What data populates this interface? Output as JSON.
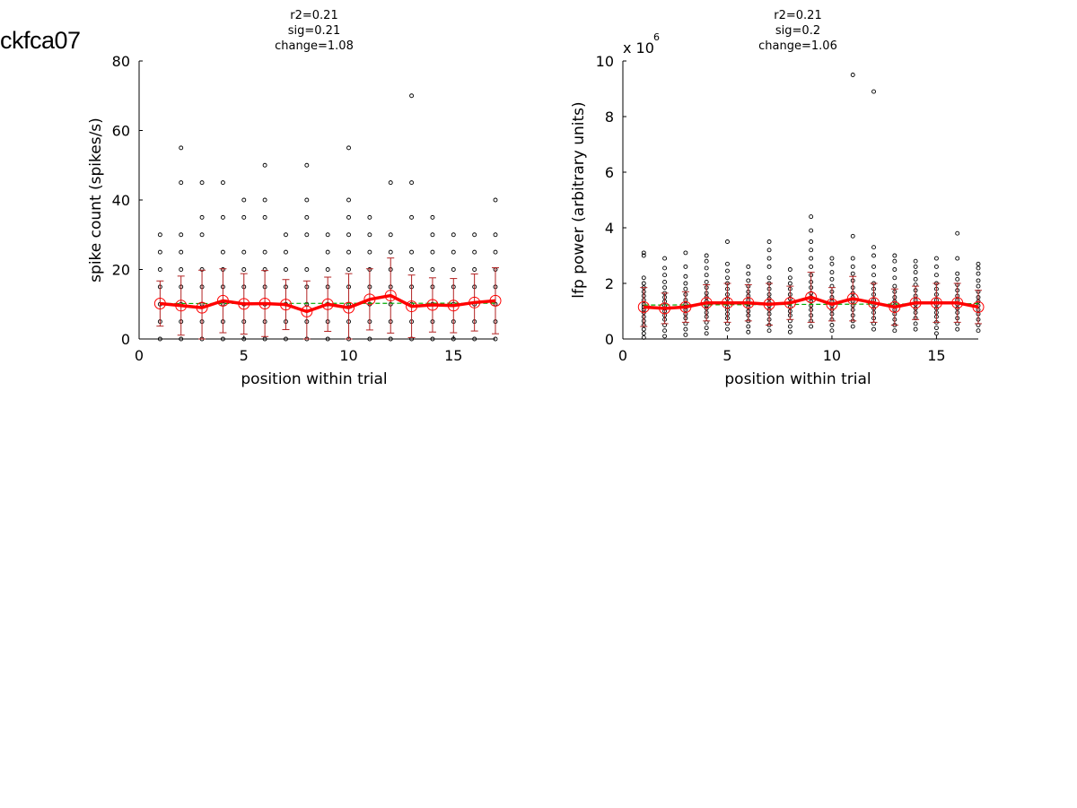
{
  "page": {
    "title": "ckfca07"
  },
  "colors": {
    "axis": "#000000",
    "points": "#000000",
    "mean": "#ff0000",
    "errorbar": "#b22222",
    "fit": "#00aa00"
  },
  "chart_data": [
    {
      "type": "scatter",
      "stats": {
        "line1": "r2=0.21",
        "line2": "sig=0.21",
        "line3": "change=1.08"
      },
      "xlabel": "position within trial",
      "ylabel": "spike count (spikes/s)",
      "exponent_label": "",
      "xlim": [
        0,
        17
      ],
      "ylim": [
        0,
        80
      ],
      "xticks": [
        0,
        5,
        10,
        15
      ],
      "yticks": [
        0,
        20,
        40,
        60,
        80
      ],
      "x": [
        1,
        2,
        3,
        4,
        5,
        6,
        7,
        8,
        9,
        10,
        11,
        12,
        13,
        14,
        15,
        16,
        17
      ],
      "trial_points": [
        [
          0,
          5,
          10,
          15,
          20,
          25,
          30
        ],
        [
          0,
          5,
          10,
          15,
          20,
          25,
          30,
          45,
          55
        ],
        [
          0,
          5,
          10,
          15,
          20,
          30,
          35,
          45
        ],
        [
          0,
          5,
          10,
          15,
          20,
          25,
          35,
          45
        ],
        [
          0,
          5,
          10,
          15,
          20,
          25,
          35,
          40
        ],
        [
          0,
          5,
          10,
          15,
          20,
          25,
          35,
          40,
          50
        ],
        [
          0,
          5,
          10,
          15,
          20,
          25,
          30
        ],
        [
          0,
          5,
          10,
          15,
          20,
          30,
          35,
          40,
          50
        ],
        [
          0,
          5,
          10,
          15,
          20,
          25,
          30
        ],
        [
          0,
          5,
          10,
          15,
          20,
          25,
          30,
          35,
          40,
          55
        ],
        [
          0,
          5,
          10,
          15,
          20,
          25,
          30,
          35
        ],
        [
          0,
          5,
          10,
          15,
          20,
          25,
          30,
          45
        ],
        [
          0,
          5,
          10,
          15,
          20,
          25,
          35,
          45,
          70
        ],
        [
          0,
          5,
          10,
          15,
          20,
          25,
          30,
          35
        ],
        [
          0,
          5,
          10,
          15,
          20,
          25,
          30
        ],
        [
          0,
          5,
          10,
          15,
          20,
          25,
          30
        ],
        [
          0,
          5,
          10,
          15,
          20,
          25,
          30,
          40
        ]
      ],
      "mean": [
        10.2,
        9.6,
        9.0,
        11.0,
        10.1,
        10.2,
        9.9,
        7.9,
        10.0,
        9.0,
        11.4,
        12.5,
        9.4,
        9.8,
        9.6,
        10.5,
        11.0
      ],
      "sd": [
        6.5,
        8.5,
        10.8,
        9.2,
        8.7,
        9.5,
        7.2,
        8.8,
        7.8,
        9.8,
        8.8,
        10.8,
        9.0,
        7.8,
        7.8,
        8.2,
        9.5
      ],
      "fit": [
        10.2,
        10.3
      ]
    },
    {
      "type": "scatter",
      "stats": {
        "line1": "r2=0.21",
        "line2": "sig=0.2",
        "line3": "change=1.06"
      },
      "xlabel": "position within trial",
      "ylabel": "lfp power (arbitrary units)",
      "exponent_label": "x 10",
      "exponent_power": "6",
      "xlim": [
        0,
        17
      ],
      "ylim": [
        0,
        10
      ],
      "xticks": [
        0,
        5,
        10,
        15
      ],
      "yticks": [
        0,
        2,
        4,
        6,
        8,
        10
      ],
      "x": [
        1,
        2,
        3,
        4,
        5,
        6,
        7,
        8,
        9,
        10,
        11,
        12,
        13,
        14,
        15,
        16,
        17
      ],
      "trial_points": [
        [
          0.05,
          0.2,
          0.35,
          0.5,
          0.65,
          0.8,
          0.95,
          1.05,
          1.15,
          1.25,
          1.4,
          1.55,
          1.7,
          1.85,
          2.0,
          2.2,
          3.0,
          3.1
        ],
        [
          0.1,
          0.3,
          0.5,
          0.7,
          0.85,
          1.0,
          1.1,
          1.2,
          1.35,
          1.5,
          1.65,
          1.85,
          2.05,
          2.3,
          2.55,
          2.9
        ],
        [
          0.15,
          0.35,
          0.55,
          0.75,
          0.9,
          1.05,
          1.15,
          1.25,
          1.4,
          1.6,
          1.8,
          2.0,
          2.25,
          2.6,
          3.1
        ],
        [
          0.2,
          0.4,
          0.6,
          0.8,
          0.95,
          1.1,
          1.2,
          1.35,
          1.5,
          1.65,
          1.85,
          2.05,
          2.3,
          2.55,
          2.8,
          3.0
        ],
        [
          0.35,
          0.55,
          0.75,
          0.9,
          1.05,
          1.15,
          1.3,
          1.45,
          1.6,
          1.8,
          2.0,
          2.2,
          2.45,
          2.7,
          3.5
        ],
        [
          0.25,
          0.45,
          0.65,
          0.85,
          1.0,
          1.15,
          1.25,
          1.4,
          1.55,
          1.7,
          1.9,
          2.1,
          2.35,
          2.6
        ],
        [
          0.3,
          0.5,
          0.7,
          0.9,
          1.05,
          1.2,
          1.3,
          1.45,
          1.6,
          1.8,
          2.0,
          2.2,
          2.6,
          2.9,
          3.2,
          3.5
        ],
        [
          0.25,
          0.45,
          0.65,
          0.85,
          1.0,
          1.15,
          1.3,
          1.45,
          1.6,
          1.8,
          2.0,
          2.2,
          2.5
        ],
        [
          0.45,
          0.65,
          0.85,
          1.05,
          1.2,
          1.35,
          1.5,
          1.65,
          1.85,
          2.05,
          2.3,
          2.6,
          2.9,
          3.2,
          3.5,
          3.9,
          4.4
        ],
        [
          0.3,
          0.5,
          0.7,
          0.9,
          1.05,
          1.2,
          1.35,
          1.5,
          1.7,
          1.9,
          2.15,
          2.4,
          2.7,
          2.9
        ],
        [
          0.45,
          0.65,
          0.85,
          1.05,
          1.2,
          1.35,
          1.5,
          1.65,
          1.85,
          2.1,
          2.35,
          2.6,
          2.9,
          3.7,
          9.5
        ],
        [
          0.35,
          0.55,
          0.75,
          0.95,
          1.1,
          1.25,
          1.4,
          1.6,
          1.8,
          2.0,
          2.3,
          2.6,
          3.0,
          3.3,
          8.9
        ],
        [
          0.3,
          0.5,
          0.7,
          0.9,
          1.05,
          1.2,
          1.35,
          1.5,
          1.7,
          1.9,
          2.2,
          2.5,
          2.8,
          3.0
        ],
        [
          0.35,
          0.55,
          0.75,
          0.95,
          1.1,
          1.25,
          1.4,
          1.55,
          1.75,
          1.95,
          2.15,
          2.4,
          2.6,
          2.8
        ],
        [
          0.2,
          0.4,
          0.6,
          0.8,
          0.95,
          1.1,
          1.25,
          1.4,
          1.6,
          1.8,
          2.0,
          2.3,
          2.6,
          2.9
        ],
        [
          0.35,
          0.55,
          0.75,
          0.95,
          1.1,
          1.25,
          1.4,
          1.55,
          1.75,
          1.95,
          2.15,
          2.35,
          2.9,
          3.8
        ],
        [
          0.3,
          0.5,
          0.7,
          0.9,
          1.05,
          1.2,
          1.35,
          1.5,
          1.7,
          1.9,
          2.1,
          2.35,
          2.55,
          2.7
        ]
      ],
      "mean": [
        1.15,
        1.1,
        1.15,
        1.3,
        1.3,
        1.3,
        1.25,
        1.3,
        1.5,
        1.25,
        1.45,
        1.3,
        1.15,
        1.3,
        1.3,
        1.3,
        1.15
      ],
      "sd": [
        0.7,
        0.55,
        0.55,
        0.65,
        0.7,
        0.65,
        0.75,
        0.6,
        0.9,
        0.6,
        0.8,
        0.7,
        0.65,
        0.6,
        0.7,
        0.7,
        0.6
      ],
      "fit": [
        1.22,
        1.27
      ]
    }
  ]
}
